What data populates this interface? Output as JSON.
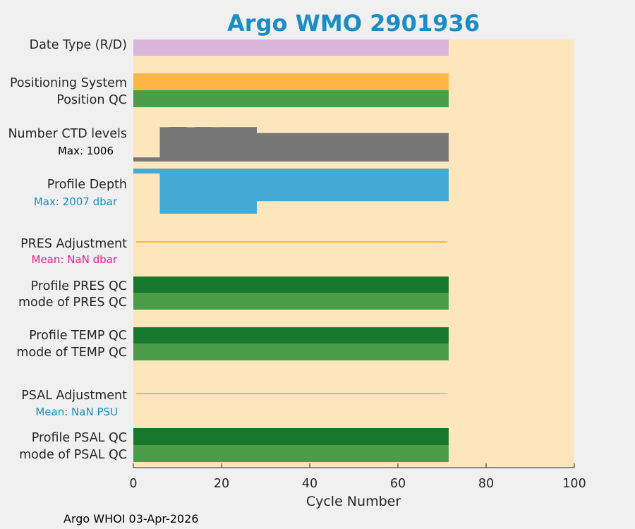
{
  "chart_data": {
    "type": "bar",
    "title": "Argo WMO 2901936",
    "xlabel": "Cycle Number",
    "xlim": [
      0,
      100
    ],
    "xticks": [
      "0",
      "20",
      "40",
      "60",
      "80",
      "100"
    ],
    "last_cycle": 71.5,
    "row_labels": {
      "date_type": "Date Type (R/D)",
      "positioning": "Positioning System",
      "position_qc": "Position QC",
      "ctd_levels": "Number CTD levels",
      "profile_depth": "Profile Depth",
      "pres_adj": "PRES Adjustment",
      "profile_pres_qc": "Profile PRES QC",
      "mode_pres_qc": "mode of PRES QC",
      "profile_temp_qc": "Profile TEMP QC",
      "mode_temp_qc": "mode of TEMP QC",
      "psal_adj": "PSAL Adjustment",
      "profile_psal_qc": "Profile PSAL QC",
      "mode_psal_qc": "mode of PSAL QC"
    },
    "sub_labels": {
      "ctd_max": "Max: 1006",
      "depth_max": "Max: 2007 dbar",
      "pres_mean": "Mean:  NaN dbar",
      "psal_mean": "Mean:  NaN PSU"
    },
    "ctd_levels": {
      "max": 1006,
      "segments": [
        {
          "x": [
            0,
            6
          ],
          "value": 120
        },
        {
          "x": [
            6,
            8
          ],
          "value": 1000
        },
        {
          "x": [
            8,
            12
          ],
          "value": 1006
        },
        {
          "x": [
            12,
            14
          ],
          "value": 998
        },
        {
          "x": [
            14,
            18
          ],
          "value": 1004
        },
        {
          "x": [
            18,
            20
          ],
          "value": 1000
        },
        {
          "x": [
            20,
            28
          ],
          "value": 1002
        },
        {
          "x": [
            28,
            71.5
          ],
          "value": 830
        }
      ]
    },
    "profile_depth": {
      "max_dbar": 2007,
      "segments": [
        {
          "x": [
            0,
            6
          ],
          "value": 220
        },
        {
          "x": [
            6,
            28
          ],
          "value": 2005
        },
        {
          "x": [
            28,
            71.5
          ],
          "value": 1450
        }
      ]
    },
    "colors": {
      "background_plot": "#fde6bb",
      "figure_bg": "#f0f0f0",
      "title": "#1a8ec4",
      "date_type": "#d9b6da",
      "positioning": "#fdb545",
      "qc_green": "#499c48",
      "qc_dark_green": "#17782e",
      "ctd_gray": "#777777",
      "depth_blue": "#44aad3",
      "adj_line": "#fdb545",
      "pres_mean": "#e31a8c",
      "depth_max": "#1a8ec4",
      "psal_mean": "#1a8ec4"
    }
  },
  "footer": {
    "text": "Argo WHOI 03-Apr-2026"
  }
}
